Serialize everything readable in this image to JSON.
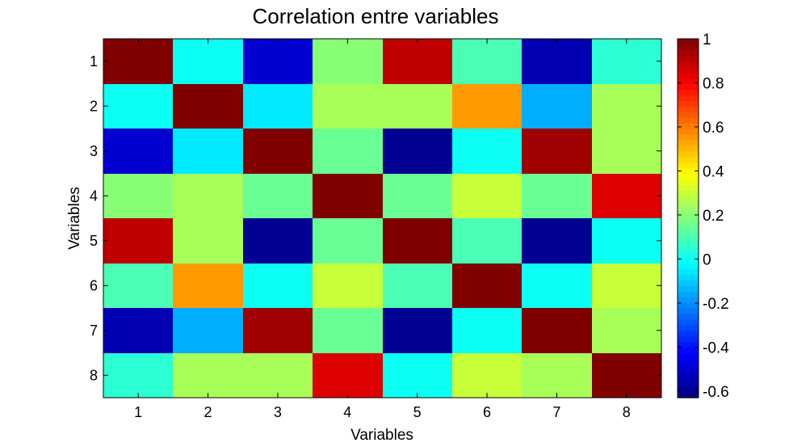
{
  "chart_data": {
    "type": "heatmap",
    "title": "Correlation entre variables",
    "xlabel": "Variables",
    "ylabel": "Variables",
    "x_categories": [
      "1",
      "2",
      "3",
      "4",
      "5",
      "6",
      "7",
      "8"
    ],
    "y_categories": [
      "1",
      "2",
      "3",
      "4",
      "5",
      "6",
      "7",
      "8"
    ],
    "values": [
      [
        1.0,
        0.0,
        -0.5,
        0.2,
        0.9,
        0.1,
        -0.55,
        0.05
      ],
      [
        0.0,
        1.0,
        -0.05,
        0.25,
        0.25,
        0.55,
        -0.15,
        0.25
      ],
      [
        -0.5,
        -0.05,
        1.0,
        0.15,
        -0.6,
        0.0,
        0.95,
        0.25
      ],
      [
        0.2,
        0.25,
        0.15,
        1.0,
        0.15,
        0.3,
        0.15,
        0.85
      ],
      [
        0.9,
        0.25,
        -0.6,
        0.15,
        1.0,
        0.1,
        -0.6,
        0.0
      ],
      [
        0.1,
        0.55,
        0.0,
        0.3,
        0.1,
        1.0,
        0.0,
        0.3
      ],
      [
        -0.55,
        -0.15,
        0.95,
        0.15,
        -0.6,
        0.0,
        1.0,
        0.25
      ],
      [
        0.05,
        0.25,
        0.25,
        0.85,
        0.0,
        0.3,
        0.25,
        1.0
      ]
    ],
    "colormap": "jet",
    "clim": [
      -0.63,
      1.0
    ],
    "colorbar_ticks": [
      1,
      0.8,
      0.6,
      0.4,
      0.2,
      0,
      -0.2,
      -0.4,
      -0.6
    ],
    "colorbar_tick_labels": [
      "1",
      "0.8",
      "0.6",
      "0.4",
      "0.2",
      "0",
      "-0.2",
      "-0.4",
      "-0.6"
    ],
    "grid": false
  }
}
